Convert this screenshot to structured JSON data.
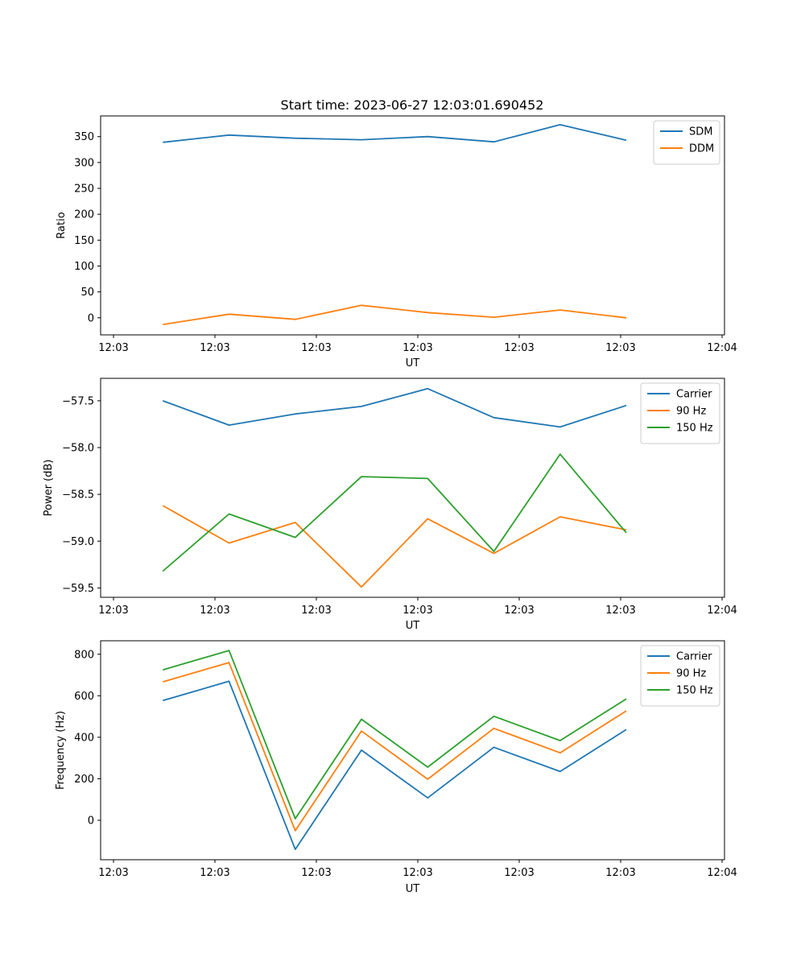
{
  "colors": {
    "c0": "#1f77b4",
    "c1": "#ff7f0e",
    "c2": "#2ca02c"
  },
  "chart_data": [
    {
      "type": "line",
      "title": "Start time: 2023-06-27 12:03:01.690452",
      "xlabel": "UT",
      "ylabel": "Ratio",
      "x_range": [
        0,
        4.3
      ],
      "x_ticks": [
        0,
        0.72,
        1.44,
        2.16,
        2.88,
        3.6,
        4.32
      ],
      "x_tick_labels": [
        "12:03",
        "12:03",
        "12:03",
        "12:03",
        "12:03",
        "12:03",
        "12:04"
      ],
      "ylim": [
        -33,
        390
      ],
      "y_ticks": [
        0,
        50,
        100,
        150,
        200,
        250,
        300,
        350
      ],
      "y_tick_labels": [
        "0",
        "50",
        "100",
        "150",
        "200",
        "250",
        "300",
        "350"
      ],
      "legend": "top-right",
      "x": [
        0.35,
        0.82,
        1.29,
        1.76,
        2.23,
        2.7,
        3.17,
        3.64
      ],
      "series": [
        {
          "name": "SDM",
          "color": "#1f77b4",
          "values": [
            339,
            353,
            347,
            344,
            350,
            340,
            373,
            343
          ]
        },
        {
          "name": "DDM",
          "color": "#ff7f0e",
          "values": [
            -13,
            7,
            -3,
            24,
            10,
            1,
            15,
            0
          ]
        }
      ]
    },
    {
      "type": "line",
      "title": "",
      "xlabel": "UT",
      "ylabel": "Power (dB)",
      "x_range": [
        0,
        4.3
      ],
      "x_ticks": [
        0,
        0.72,
        1.44,
        2.16,
        2.88,
        3.6,
        4.32
      ],
      "x_tick_labels": [
        "12:03",
        "12:03",
        "12:03",
        "12:03",
        "12:03",
        "12:03",
        "12:04"
      ],
      "ylim": [
        -59.6,
        -57.26
      ],
      "y_ticks": [
        -59.5,
        -59.0,
        -58.5,
        -58.0,
        -57.5
      ],
      "y_tick_labels": [
        "−59.5",
        "−59.0",
        "−58.5",
        "−58.0",
        "−57.5"
      ],
      "legend": "top-right",
      "x": [
        0.35,
        0.82,
        1.29,
        1.76,
        2.23,
        2.7,
        3.17,
        3.64
      ],
      "series": [
        {
          "name": "Carrier",
          "color": "#1f77b4",
          "values": [
            -57.5,
            -57.76,
            -57.64,
            -57.56,
            -57.37,
            -57.68,
            -57.78,
            -57.55
          ]
        },
        {
          "name": "90 Hz",
          "color": "#ff7f0e",
          "values": [
            -58.62,
            -59.02,
            -58.8,
            -59.49,
            -58.76,
            -59.13,
            -58.74,
            -58.88
          ]
        },
        {
          "name": "150 Hz",
          "color": "#2ca02c",
          "values": [
            -59.32,
            -58.71,
            -58.96,
            -58.31,
            -58.33,
            -59.11,
            -58.07,
            -58.91
          ]
        }
      ]
    },
    {
      "type": "line",
      "title": "",
      "xlabel": "UT",
      "ylabel": "Frequency (Hz)",
      "x_range": [
        0,
        4.3
      ],
      "x_ticks": [
        0,
        0.72,
        1.44,
        2.16,
        2.88,
        3.6,
        4.32
      ],
      "x_tick_labels": [
        "12:03",
        "12:03",
        "12:03",
        "12:03",
        "12:03",
        "12:03",
        "12:04"
      ],
      "ylim": [
        -190,
        865
      ],
      "y_ticks": [
        0,
        200,
        400,
        600,
        800
      ],
      "y_tick_labels": [
        "0",
        "200",
        "400",
        "600",
        "800"
      ],
      "legend": "top-right",
      "x": [
        0.35,
        0.82,
        1.29,
        1.76,
        2.23,
        2.7,
        3.17,
        3.64
      ],
      "series": [
        {
          "name": "Carrier",
          "color": "#1f77b4",
          "values": [
            577,
            670,
            -140,
            338,
            108,
            352,
            235,
            437
          ]
        },
        {
          "name": "90 Hz",
          "color": "#ff7f0e",
          "values": [
            667,
            760,
            -50,
            430,
            198,
            443,
            325,
            527
          ]
        },
        {
          "name": "150 Hz",
          "color": "#2ca02c",
          "values": [
            725,
            818,
            8,
            487,
            256,
            501,
            384,
            585
          ]
        }
      ]
    }
  ]
}
